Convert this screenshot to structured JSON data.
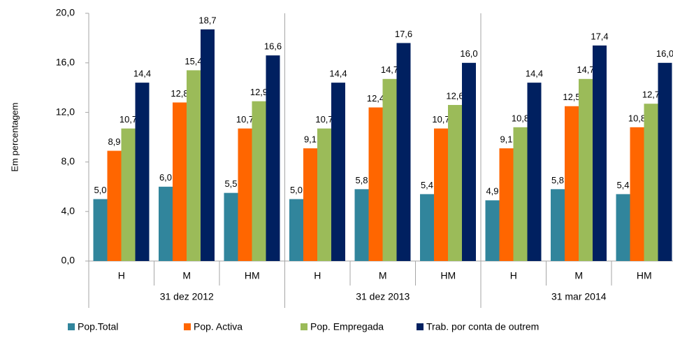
{
  "chart_data": {
    "type": "bar",
    "y_label": "Em percentagem",
    "categories": [
      "H",
      "M",
      "HM",
      "H",
      "M",
      "HM",
      "H",
      "M",
      "HM"
    ],
    "groups": [
      "31 dez 2012",
      "31 dez 2013",
      "31 mar 2014"
    ],
    "series": [
      {
        "name": "Pop.Total",
        "color": "#31859c",
        "values": [
          5.0,
          6.0,
          5.5,
          5.0,
          5.8,
          5.4,
          4.9,
          5.8,
          5.4
        ],
        "value_labels": [
          "5,0",
          "6,0",
          "5,5",
          "5,0",
          "5,8",
          "5,4",
          "4,9",
          "5,8",
          "5,4"
        ]
      },
      {
        "name": "Pop. Activa",
        "color": "#ff6600",
        "values": [
          8.9,
          12.8,
          10.7,
          9.1,
          12.4,
          10.7,
          9.1,
          12.5,
          10.8
        ],
        "value_labels": [
          "8,9",
          "12,8",
          "10,7",
          "9,1",
          "12,4",
          "10,7",
          "9,1",
          "12,5",
          "10,8"
        ]
      },
      {
        "name": "Pop. Empregada",
        "color": "#9bbb59",
        "values": [
          10.7,
          15.4,
          12.9,
          10.7,
          14.7,
          12.6,
          10.8,
          14.7,
          12.7
        ],
        "value_labels": [
          "10,7",
          "15,4",
          "12,9",
          "10,7",
          "14,7",
          "12,6",
          "10,8",
          "14,7",
          "12,7"
        ]
      },
      {
        "name": "Trab. por conta de outrem",
        "color": "#002060",
        "values": [
          14.4,
          18.7,
          16.6,
          14.4,
          17.6,
          16.0,
          14.4,
          17.4,
          16.0
        ],
        "value_labels": [
          "14,4",
          "18,7",
          "16,6",
          "14,4",
          "17,6",
          "16,0",
          "14,4",
          "17,4",
          "16,0"
        ]
      }
    ],
    "ylim": [
      0,
      20
    ],
    "yticks": [
      {
        "value": 0,
        "label": "0,0"
      },
      {
        "value": 4,
        "label": "4,0"
      },
      {
        "value": 8,
        "label": "8,0"
      },
      {
        "value": 12,
        "label": "12,0"
      },
      {
        "value": 16,
        "label": "16,0"
      },
      {
        "value": 20,
        "label": "20,0"
      }
    ],
    "legend": "bottom"
  }
}
